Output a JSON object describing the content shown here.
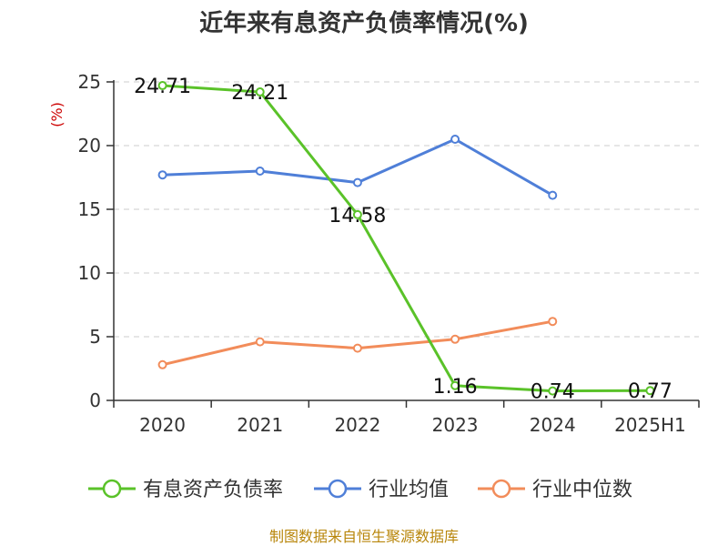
{
  "chart_data": {
    "type": "line",
    "title": "近年来有息资产负债率情况(%)",
    "ylabel": "(%)",
    "xlabel": "",
    "categories": [
      "2020",
      "2021",
      "2022",
      "2023",
      "2024",
      "2025H1"
    ],
    "ylim": [
      0,
      25
    ],
    "yticks": [
      "0",
      "5",
      "10",
      "15",
      "20",
      "25"
    ],
    "grid": true,
    "legend_position": "bottom",
    "series": [
      {
        "name": "有息资产负债率",
        "color": "#5ac229",
        "values": [
          24.71,
          24.21,
          14.58,
          1.16,
          0.74,
          0.77
        ],
        "labels": [
          "24.71",
          "24.21",
          "14.58",
          "1.16",
          "0.74",
          "0.77"
        ]
      },
      {
        "name": "行业均值",
        "color": "#4f7fd8",
        "values": [
          17.7,
          18.0,
          17.1,
          20.5,
          16.1,
          null
        ],
        "labels": []
      },
      {
        "name": "行业中位数",
        "color": "#f28c5a",
        "values": [
          2.8,
          4.6,
          4.1,
          4.8,
          6.2,
          null
        ],
        "labels": []
      }
    ],
    "source": "制图数据来自恒生聚源数据库"
  }
}
